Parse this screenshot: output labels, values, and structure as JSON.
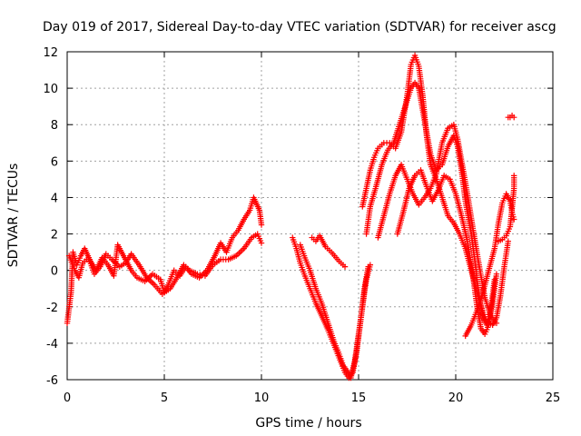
{
  "chart_data": {
    "type": "scatter",
    "title": "Day 019 of 2017, Sidereal Day-to-day VTEC variation (SDTVAR) for receiver ascg",
    "xlabel": "GPS time / hours",
    "ylabel": "SDTVAR / TECUs",
    "xlim": [
      0,
      25
    ],
    "ylim": [
      -6,
      12
    ],
    "x_ticks": [
      "0",
      "5",
      "10",
      "15",
      "20",
      "25"
    ],
    "y_ticks": [
      "-6",
      "-4",
      "-2",
      "0",
      "2",
      "4",
      "6",
      "8",
      "10",
      "12"
    ],
    "grid": true,
    "marker": "+",
    "color": "#ff0000",
    "series": [
      {
        "points": [
          [
            0.0,
            -2.9
          ],
          [
            0.2,
            -1.2
          ],
          [
            0.3,
            1.0
          ],
          [
            0.5,
            0.3
          ],
          [
            0.7,
            0.8
          ],
          [
            0.9,
            1.2
          ],
          [
            1.2,
            0.5
          ],
          [
            1.5,
            0.0
          ],
          [
            1.8,
            0.7
          ],
          [
            2.1,
            0.3
          ],
          [
            2.4,
            -0.3
          ],
          [
            2.6,
            1.4
          ],
          [
            3.0,
            0.6
          ],
          [
            3.3,
            0.0
          ],
          [
            3.6,
            -0.4
          ],
          [
            4.0,
            -0.6
          ],
          [
            4.4,
            -0.2
          ],
          [
            4.8,
            -0.5
          ],
          [
            5.0,
            -1.2
          ],
          [
            5.2,
            -0.8
          ],
          [
            5.5,
            0.0
          ],
          [
            5.8,
            -0.3
          ],
          [
            6.1,
            0.2
          ],
          [
            6.4,
            -0.2
          ],
          [
            6.8,
            -0.4
          ],
          [
            7.2,
            0.0
          ],
          [
            7.6,
            0.8
          ],
          [
            7.9,
            1.5
          ],
          [
            8.2,
            1.0
          ],
          [
            8.5,
            1.8
          ],
          [
            8.8,
            2.2
          ],
          [
            9.1,
            2.8
          ],
          [
            9.4,
            3.3
          ],
          [
            9.6,
            4.0
          ],
          [
            9.9,
            3.3
          ],
          [
            10.0,
            2.5
          ]
        ]
      },
      {
        "points": [
          [
            0.1,
            0.8
          ],
          [
            0.4,
            0.0
          ],
          [
            0.6,
            -0.4
          ],
          [
            0.8,
            0.4
          ],
          [
            1.1,
            0.7
          ],
          [
            1.4,
            -0.2
          ],
          [
            1.7,
            0.2
          ],
          [
            2.0,
            0.9
          ],
          [
            2.3,
            0.6
          ],
          [
            2.7,
            0.2
          ],
          [
            3.0,
            0.4
          ],
          [
            3.3,
            0.9
          ],
          [
            3.7,
            0.3
          ],
          [
            4.1,
            -0.4
          ],
          [
            4.5,
            -0.8
          ],
          [
            4.9,
            -1.3
          ],
          [
            5.3,
            -1.0
          ],
          [
            5.6,
            -0.5
          ],
          [
            6.0,
            0.3
          ],
          [
            6.3,
            0.0
          ],
          [
            6.7,
            -0.2
          ],
          [
            7.1,
            -0.3
          ],
          [
            7.5,
            0.3
          ],
          [
            7.9,
            0.6
          ],
          [
            8.3,
            0.6
          ],
          [
            8.7,
            0.8
          ],
          [
            9.1,
            1.2
          ],
          [
            9.5,
            1.8
          ],
          [
            9.8,
            2.0
          ],
          [
            10.0,
            1.5
          ]
        ]
      },
      {
        "points": [
          [
            11.6,
            1.8
          ],
          [
            11.8,
            1.2
          ],
          [
            12.0,
            0.4
          ],
          [
            12.2,
            -0.2
          ],
          [
            12.5,
            -1.0
          ],
          [
            12.8,
            -1.8
          ],
          [
            13.1,
            -2.5
          ],
          [
            13.4,
            -3.2
          ],
          [
            13.7,
            -4.0
          ],
          [
            14.0,
            -4.8
          ],
          [
            14.3,
            -5.6
          ],
          [
            14.5,
            -5.9
          ],
          [
            14.7,
            -5.6
          ],
          [
            14.9,
            -4.5
          ],
          [
            15.1,
            -2.8
          ],
          [
            15.3,
            -1.0
          ],
          [
            15.5,
            0.2
          ]
        ]
      },
      {
        "points": [
          [
            12.0,
            1.4
          ],
          [
            12.2,
            0.8
          ],
          [
            12.5,
            0.0
          ],
          [
            12.8,
            -1.0
          ],
          [
            13.1,
            -1.8
          ],
          [
            13.4,
            -2.8
          ],
          [
            13.7,
            -3.8
          ],
          [
            14.0,
            -4.6
          ],
          [
            14.2,
            -5.2
          ],
          [
            14.4,
            -5.5
          ],
          [
            14.6,
            -5.9
          ],
          [
            14.8,
            -5.0
          ],
          [
            15.0,
            -3.5
          ],
          [
            15.2,
            -2.0
          ],
          [
            15.4,
            -0.5
          ],
          [
            15.6,
            0.3
          ]
        ]
      },
      {
        "points": [
          [
            12.6,
            1.8
          ],
          [
            12.8,
            1.6
          ],
          [
            13.0,
            1.9
          ],
          [
            13.3,
            1.3
          ],
          [
            13.6,
            1.0
          ],
          [
            14.0,
            0.5
          ],
          [
            14.3,
            0.2
          ]
        ]
      },
      {
        "points": [
          [
            15.2,
            3.5
          ],
          [
            15.4,
            4.5
          ],
          [
            15.6,
            5.5
          ],
          [
            15.8,
            6.2
          ],
          [
            16.0,
            6.7
          ],
          [
            16.3,
            7.0
          ],
          [
            16.6,
            7.0
          ],
          [
            16.9,
            6.7
          ],
          [
            17.2,
            7.6
          ],
          [
            17.5,
            9.6
          ],
          [
            17.7,
            11.3
          ],
          [
            17.9,
            11.8
          ],
          [
            18.1,
            11.2
          ],
          [
            18.3,
            9.6
          ],
          [
            18.5,
            7.4
          ],
          [
            18.7,
            5.8
          ],
          [
            19.0,
            5.0
          ],
          [
            19.3,
            4.0
          ],
          [
            19.6,
            3.0
          ],
          [
            19.9,
            2.6
          ],
          [
            20.2,
            2.0
          ],
          [
            20.5,
            1.2
          ],
          [
            20.8,
            0.0
          ],
          [
            21.1,
            -1.2
          ],
          [
            21.4,
            -2.3
          ],
          [
            21.6,
            -2.8
          ],
          [
            21.9,
            -3.0
          ],
          [
            22.1,
            -2.6
          ],
          [
            22.3,
            -1.4
          ],
          [
            22.5,
            0.2
          ],
          [
            22.7,
            1.6
          ]
        ]
      },
      {
        "points": [
          [
            15.4,
            2.0
          ],
          [
            15.6,
            3.5
          ],
          [
            15.9,
            4.6
          ],
          [
            16.2,
            5.8
          ],
          [
            16.5,
            6.6
          ],
          [
            16.8,
            7.0
          ],
          [
            17.1,
            8.0
          ],
          [
            17.4,
            9.0
          ],
          [
            17.7,
            10.0
          ],
          [
            17.9,
            10.3
          ],
          [
            18.1,
            10.0
          ],
          [
            18.3,
            8.8
          ],
          [
            18.5,
            7.6
          ],
          [
            18.7,
            6.4
          ],
          [
            19.0,
            5.5
          ],
          [
            19.3,
            5.8
          ],
          [
            19.6,
            6.8
          ],
          [
            19.9,
            7.4
          ],
          [
            20.1,
            6.8
          ],
          [
            20.3,
            5.5
          ],
          [
            20.5,
            3.8
          ],
          [
            20.8,
            2.0
          ],
          [
            21.0,
            0.4
          ],
          [
            21.2,
            -1.4
          ],
          [
            21.4,
            -2.6
          ],
          [
            21.6,
            -3.0
          ],
          [
            21.8,
            -2.2
          ],
          [
            22.0,
            -0.5
          ]
        ]
      },
      {
        "points": [
          [
            16.0,
            1.8
          ],
          [
            16.3,
            3.0
          ],
          [
            16.6,
            4.2
          ],
          [
            16.9,
            5.2
          ],
          [
            17.2,
            5.8
          ],
          [
            17.5,
            5.0
          ],
          [
            17.8,
            4.2
          ],
          [
            18.1,
            3.6
          ],
          [
            18.4,
            4.0
          ],
          [
            18.7,
            4.5
          ],
          [
            19.0,
            5.3
          ],
          [
            19.3,
            7.0
          ],
          [
            19.6,
            7.8
          ],
          [
            19.9,
            8.0
          ],
          [
            20.1,
            7.2
          ],
          [
            20.3,
            6.0
          ],
          [
            20.6,
            4.2
          ],
          [
            20.9,
            2.2
          ],
          [
            21.2,
            0.3
          ],
          [
            21.5,
            -1.5
          ],
          [
            21.8,
            -2.5
          ],
          [
            22.1,
            -2.9
          ]
        ]
      },
      {
        "points": [
          [
            17.0,
            2.0
          ],
          [
            17.3,
            3.2
          ],
          [
            17.6,
            4.5
          ],
          [
            17.9,
            5.2
          ],
          [
            18.2,
            5.5
          ],
          [
            18.5,
            4.6
          ],
          [
            18.8,
            3.8
          ],
          [
            19.1,
            4.4
          ],
          [
            19.4,
            5.2
          ],
          [
            19.7,
            5.0
          ],
          [
            20.0,
            4.2
          ],
          [
            20.3,
            3.0
          ],
          [
            20.6,
            1.6
          ],
          [
            20.9,
            -0.4
          ],
          [
            21.1,
            -2.0
          ],
          [
            21.3,
            -3.2
          ],
          [
            21.5,
            -3.5
          ],
          [
            21.7,
            -3.0
          ],
          [
            21.9,
            -1.8
          ],
          [
            22.1,
            -0.2
          ]
        ]
      },
      {
        "points": [
          [
            20.5,
            -3.6
          ],
          [
            20.8,
            -3.0
          ],
          [
            21.1,
            -2.2
          ],
          [
            21.4,
            -1.2
          ],
          [
            21.7,
            0.0
          ],
          [
            22.0,
            1.2
          ],
          [
            22.2,
            2.6
          ],
          [
            22.4,
            3.7
          ],
          [
            22.6,
            4.2
          ],
          [
            22.8,
            3.8
          ],
          [
            22.9,
            3.2
          ],
          [
            23.0,
            2.8
          ]
        ]
      },
      {
        "points": [
          [
            22.2,
            1.6
          ],
          [
            22.4,
            1.7
          ],
          [
            22.6,
            1.9
          ],
          [
            22.8,
            2.4
          ],
          [
            22.9,
            3.4
          ],
          [
            23.0,
            4.5
          ],
          [
            23.0,
            5.2
          ]
        ]
      },
      {
        "points": [
          [
            22.7,
            8.4
          ],
          [
            22.8,
            8.4
          ],
          [
            22.9,
            8.5
          ],
          [
            23.0,
            8.4
          ]
        ]
      }
    ]
  }
}
